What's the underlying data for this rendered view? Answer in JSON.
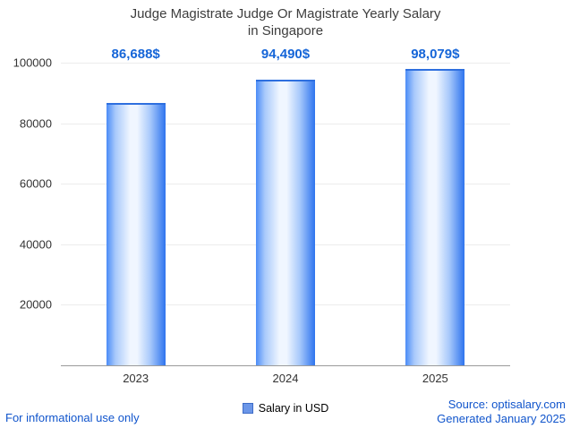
{
  "title": {
    "line1": "Judge Magistrate Judge Or Magistrate Yearly Salary",
    "line2": "in Singapore"
  },
  "chart_data": {
    "type": "bar",
    "categories": [
      "2023",
      "2024",
      "2025"
    ],
    "values": [
      86688,
      94490,
      98079
    ],
    "value_labels": [
      "86,688$",
      "94,490$",
      "98,079$"
    ],
    "title": "Judge Magistrate Judge Or Magistrate Yearly Salary in Singapore",
    "xlabel": "",
    "ylabel": "",
    "ylim": [
      0,
      100000
    ],
    "yticks": [
      20000,
      40000,
      60000,
      80000,
      100000
    ],
    "grid": true,
    "legend": "Salary in USD",
    "legend_position": "bottom",
    "bar_gradient": [
      "#4b8cf7",
      "#f0f6ff",
      "#2e74ee"
    ],
    "value_label_color": "#1565d8"
  },
  "legend": {
    "label": "Salary in USD"
  },
  "footer": {
    "left": "For informational use only",
    "source": "Source: optisalary.com",
    "generated": "Generated January 2025"
  }
}
